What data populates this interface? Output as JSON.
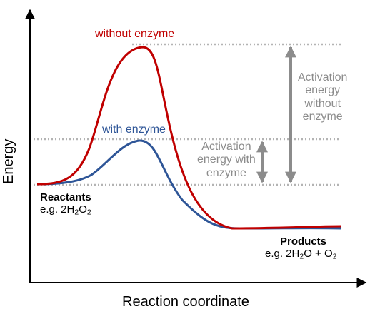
{
  "curves": {
    "without_enzyme": {
      "label": "without enzyme",
      "color": "#c00000"
    },
    "with_enzyme": {
      "label": "with enzyme",
      "color": "#2e5597"
    }
  },
  "activation_without": {
    "line1": "Activation",
    "line2": "energy",
    "line3": "without",
    "line4": "enzyme"
  },
  "activation_with": {
    "line1": "Activation",
    "line2": "energy with",
    "line3": "enzyme"
  },
  "reactants": {
    "title": "Reactants",
    "example_prefix": "e.g. 2H",
    "sub1": "2",
    "mid1": "O",
    "sub2": "2"
  },
  "products": {
    "title": "Products",
    "example_prefix": "e.g. 2H",
    "sub1": "2",
    "mid1": "O + O",
    "sub2": "2"
  },
  "axes": {
    "y_title": "Energy",
    "x_title": "Reaction coordinate"
  },
  "colors": {
    "arrow": "#8c8c8c",
    "guide": "#b3b3b3",
    "axis": "#000000"
  }
}
